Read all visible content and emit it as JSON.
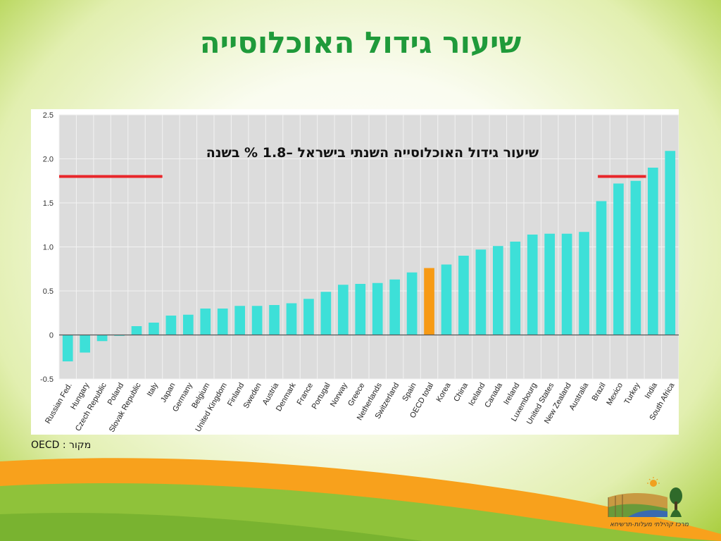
{
  "slide": {
    "title": "שיעור גידול האוכלוסייה",
    "annotation": "שיעור גידול האוכלוסייה השנתי בישראל –1.8 % בשנה",
    "source": "OECD : מקור",
    "logo_caption": "מרכז קהילתי מעלות-תרשיחא",
    "colors": {
      "title": "#1f9a3a",
      "bar": "#3de0d8",
      "highlight_bar": "#f79a14",
      "marker_line": "#e8262a",
      "plot_bg": "#dcdcdc"
    }
  },
  "chart_data": {
    "type": "bar",
    "categories": [
      "Russian Fed.",
      "Hungary",
      "Czech Republic",
      "Poland",
      "Slovak Republic",
      "Italy",
      "Japan",
      "Germany",
      "Belgium",
      "United Kingdom",
      "Finland",
      "Sweden",
      "Austria",
      "Denmark",
      "France",
      "Portugal",
      "Norway",
      "Greece",
      "Netherlands",
      "Switzerland",
      "Spain",
      "OECD total",
      "Korea",
      "China",
      "Iceland",
      "Canada",
      "Ireland",
      "Luxembourg",
      "United States",
      "New Zealand",
      "Australia",
      "Brazil",
      "Mexico",
      "Turkey",
      "India",
      "South Africa"
    ],
    "values": [
      -0.3,
      -0.2,
      -0.07,
      -0.01,
      0.1,
      0.14,
      0.22,
      0.23,
      0.3,
      0.3,
      0.33,
      0.33,
      0.34,
      0.36,
      0.41,
      0.49,
      0.57,
      0.58,
      0.59,
      0.63,
      0.71,
      0.76,
      0.8,
      0.9,
      0.97,
      1.01,
      1.06,
      1.14,
      1.15,
      1.15,
      1.17,
      1.52,
      1.72,
      1.75,
      1.9,
      2.09
    ],
    "highlight": "OECD total",
    "ylim": [
      -0.5,
      2.5
    ],
    "yticks": [
      "2.5",
      "2.0",
      "1.5",
      "1.0",
      "0.5",
      "0",
      "-0.5"
    ],
    "reference_line": {
      "value": 1.8,
      "label": "Israel"
    },
    "grid": true,
    "title": "",
    "xlabel": "",
    "ylabel": ""
  }
}
